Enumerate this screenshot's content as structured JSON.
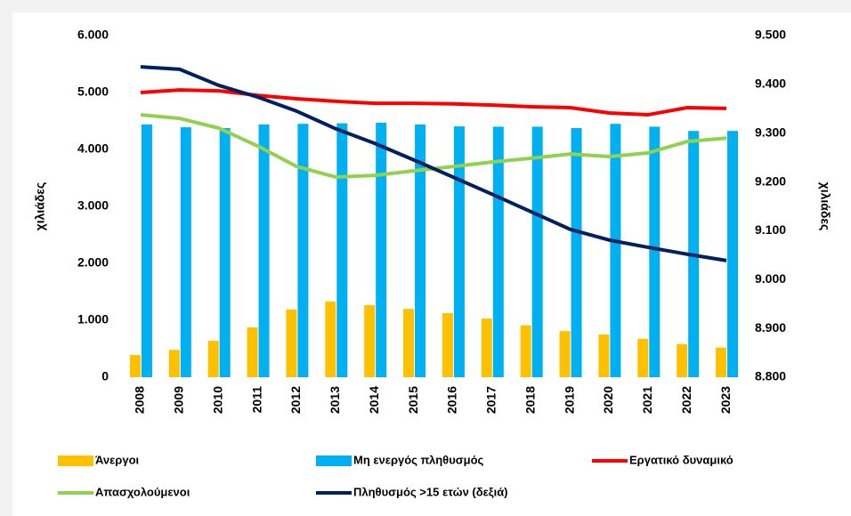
{
  "chart_data": {
    "type": "bar_line",
    "categories": [
      "2008",
      "2009",
      "2010",
      "2011",
      "2012",
      "2013",
      "2014",
      "2015",
      "2016",
      "2017",
      "2018",
      "2019",
      "2020",
      "2021",
      "2022",
      "2023"
    ],
    "y_label": "χιλιάδες",
    "y2_label": "χιλιάδες",
    "ylim": [
      0,
      6000
    ],
    "yticks": [
      {
        "value": 0,
        "label": "0"
      },
      {
        "value": 1000,
        "label": "1.000"
      },
      {
        "value": 2000,
        "label": "2.000"
      },
      {
        "value": 3000,
        "label": "3.000"
      },
      {
        "value": 4000,
        "label": "4.000"
      },
      {
        "value": 5000,
        "label": "5.000"
      },
      {
        "value": 6000,
        "label": "6.000"
      }
    ],
    "y2lim": [
      8800,
      9500
    ],
    "y2ticks": [
      {
        "value": 8800,
        "label": "8.800"
      },
      {
        "value": 8900,
        "label": "8.900"
      },
      {
        "value": 9000,
        "label": "9.000"
      },
      {
        "value": 9100,
        "label": "9.100"
      },
      {
        "value": 9200,
        "label": "9.200"
      },
      {
        "value": 9300,
        "label": "9.300"
      },
      {
        "value": 9400,
        "label": "9.400"
      },
      {
        "value": 9500,
        "label": "9.500"
      }
    ],
    "series": [
      {
        "name": "Άνεργοι",
        "kind": "bar",
        "color": "#FFC000",
        "values": [
          390,
          480,
          640,
          875,
          1190,
          1330,
          1265,
          1200,
          1125,
          1030,
          910,
          810,
          750,
          675,
          580,
          520
        ]
      },
      {
        "name": "Μη ενεργός πληθυσμός",
        "kind": "bar",
        "color": "#00B0F0",
        "values": [
          4440,
          4390,
          4375,
          4440,
          4450,
          4460,
          4470,
          4440,
          4405,
          4400,
          4400,
          4375,
          4450,
          4400,
          4325,
          4325
        ]
      },
      {
        "name": "Εργατικό δυναμικό",
        "kind": "line",
        "color": "#FF0000",
        "values": [
          5000,
          5045,
          5030,
          4950,
          4890,
          4845,
          4810,
          4810,
          4800,
          4780,
          4750,
          4735,
          4640,
          4610,
          4735,
          4720
        ]
      },
      {
        "name": "Απασχολούμενοι",
        "kind": "line",
        "color": "#92D050",
        "values": [
          4610,
          4545,
          4375,
          4060,
          3700,
          3515,
          3545,
          3625,
          3700,
          3780,
          3845,
          3920,
          3875,
          3940,
          4140,
          4200
        ]
      },
      {
        "name": "Πληθυσμός >15 ετών (δεξιά)",
        "kind": "line",
        "axis": "y2",
        "color": "#002060",
        "values": [
          9436,
          9431,
          9398,
          9374,
          9345,
          9309,
          9279,
          9245,
          9210,
          9175,
          9139,
          9103,
          9081,
          9066,
          9052,
          9039
        ]
      }
    ]
  }
}
